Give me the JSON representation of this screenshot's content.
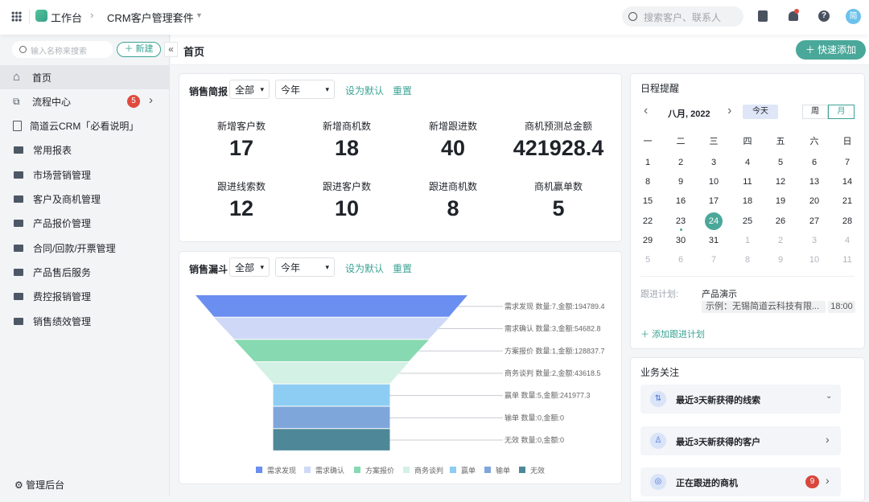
{
  "topbar": {
    "app": "工作台",
    "crumb": "CRM客户管理套件",
    "search_placeholder": "搜索客户、联系人",
    "avatar": "简"
  },
  "sidebar": {
    "search_placeholder": "输入名称来搜索",
    "new_label": "新建",
    "items": [
      {
        "label": "首页",
        "icon": "home-icon"
      },
      {
        "label": "流程中心",
        "icon": "flow-icon",
        "badge": "5"
      },
      {
        "label": "简道云CRM「必看说明」",
        "icon": "doc-icon"
      },
      {
        "label": "常用报表",
        "icon": "folder-icon"
      },
      {
        "label": "市场营销管理",
        "icon": "folder-icon"
      },
      {
        "label": "客户及商机管理",
        "icon": "folder-icon"
      },
      {
        "label": "产品报价管理",
        "icon": "folder-icon"
      },
      {
        "label": "合同/回款/开票管理",
        "icon": "folder-icon"
      },
      {
        "label": "产品售后服务",
        "icon": "folder-icon"
      },
      {
        "label": "费控报销管理",
        "icon": "folder-icon"
      },
      {
        "label": "销售绩效管理",
        "icon": "folder-icon"
      }
    ],
    "admin": "管理后台"
  },
  "main": {
    "title": "首页",
    "quick_add": "快速添加"
  },
  "brief": {
    "title": "销售简报",
    "filter1": "全部",
    "filter2": "今年",
    "set_default": "设为默认",
    "reset": "重置",
    "stats": [
      {
        "label": "新增客户数",
        "value": "17"
      },
      {
        "label": "新增商机数",
        "value": "18"
      },
      {
        "label": "新增跟进数",
        "value": "40"
      },
      {
        "label": "商机预测总金额",
        "value": "421928.4"
      },
      {
        "label": "跟进线索数",
        "value": "12"
      },
      {
        "label": "跟进客户数",
        "value": "10"
      },
      {
        "label": "跟进商机数",
        "value": "8"
      },
      {
        "label": "商机赢单数",
        "value": "5"
      }
    ]
  },
  "funnel": {
    "title": "销售漏斗",
    "filter1": "全部",
    "filter2": "今年",
    "set_default": "设为默认",
    "reset": "重置"
  },
  "chart_data": {
    "type": "funnel",
    "stages": [
      {
        "name": "需求发现",
        "count": 7,
        "amount": 194789.4,
        "label": "需求发现 数量:7,金额:194789.4",
        "color": "#6b8ff0"
      },
      {
        "name": "需求确认",
        "count": 3,
        "amount": 54682.8,
        "label": "需求确认 数量:3,金额:54682.8",
        "color": "#cfd9f7"
      },
      {
        "name": "方案报价",
        "count": 1,
        "amount": 128837.7,
        "label": "方案报价 数量:1,金额:128837.7",
        "color": "#86d9b0"
      },
      {
        "name": "商务谈判",
        "count": 2,
        "amount": 43618.5,
        "label": "商务谈判 数量:2,金额:43618.5",
        "color": "#d3f1e4"
      },
      {
        "name": "赢单",
        "count": 5,
        "amount": 241977.3,
        "label": "赢单 数量:5,金额:241977.3",
        "color": "#8ecdf3"
      },
      {
        "name": "输单",
        "count": 0,
        "amount": 0,
        "label": "输单 数量:0,金额:0",
        "color": "#7fa6da"
      },
      {
        "name": "无效",
        "count": 0,
        "amount": 0,
        "label": "无效 数量:0,金额:0",
        "color": "#4e8898"
      }
    ],
    "legend": "bottom"
  },
  "calendar": {
    "title": "日程提醒",
    "month": "八月, 2022",
    "today": "今天",
    "week": "周",
    "month_btn": "月",
    "weekdays": [
      "一",
      "二",
      "三",
      "四",
      "五",
      "六",
      "日"
    ],
    "days": [
      "1",
      "2",
      "3",
      "4",
      "5",
      "6",
      "7",
      "8",
      "9",
      "10",
      "11",
      "12",
      "13",
      "14",
      "15",
      "16",
      "17",
      "18",
      "19",
      "20",
      "21",
      "22",
      "23",
      "24",
      "25",
      "26",
      "27",
      "28",
      "29",
      "30",
      "31",
      "1",
      "2",
      "3",
      "4",
      "5",
      "6",
      "7",
      "8",
      "9",
      "10",
      "11"
    ],
    "selected": "24",
    "plan_label": "跟进计划:",
    "plan_title": "产品演示",
    "plan_desc": "示例：无锡简道云科技有限...",
    "plan_time": "18:00",
    "add_plan": "添加跟进计划"
  },
  "focus": {
    "title": "业务关注",
    "items": [
      {
        "label": "最近3天新获得的线索",
        "chevron": "down"
      },
      {
        "label": "最近3天新获得的客户",
        "chevron": "right"
      },
      {
        "label": "正在跟进的商机",
        "badge": "9",
        "chevron": "right"
      }
    ]
  }
}
